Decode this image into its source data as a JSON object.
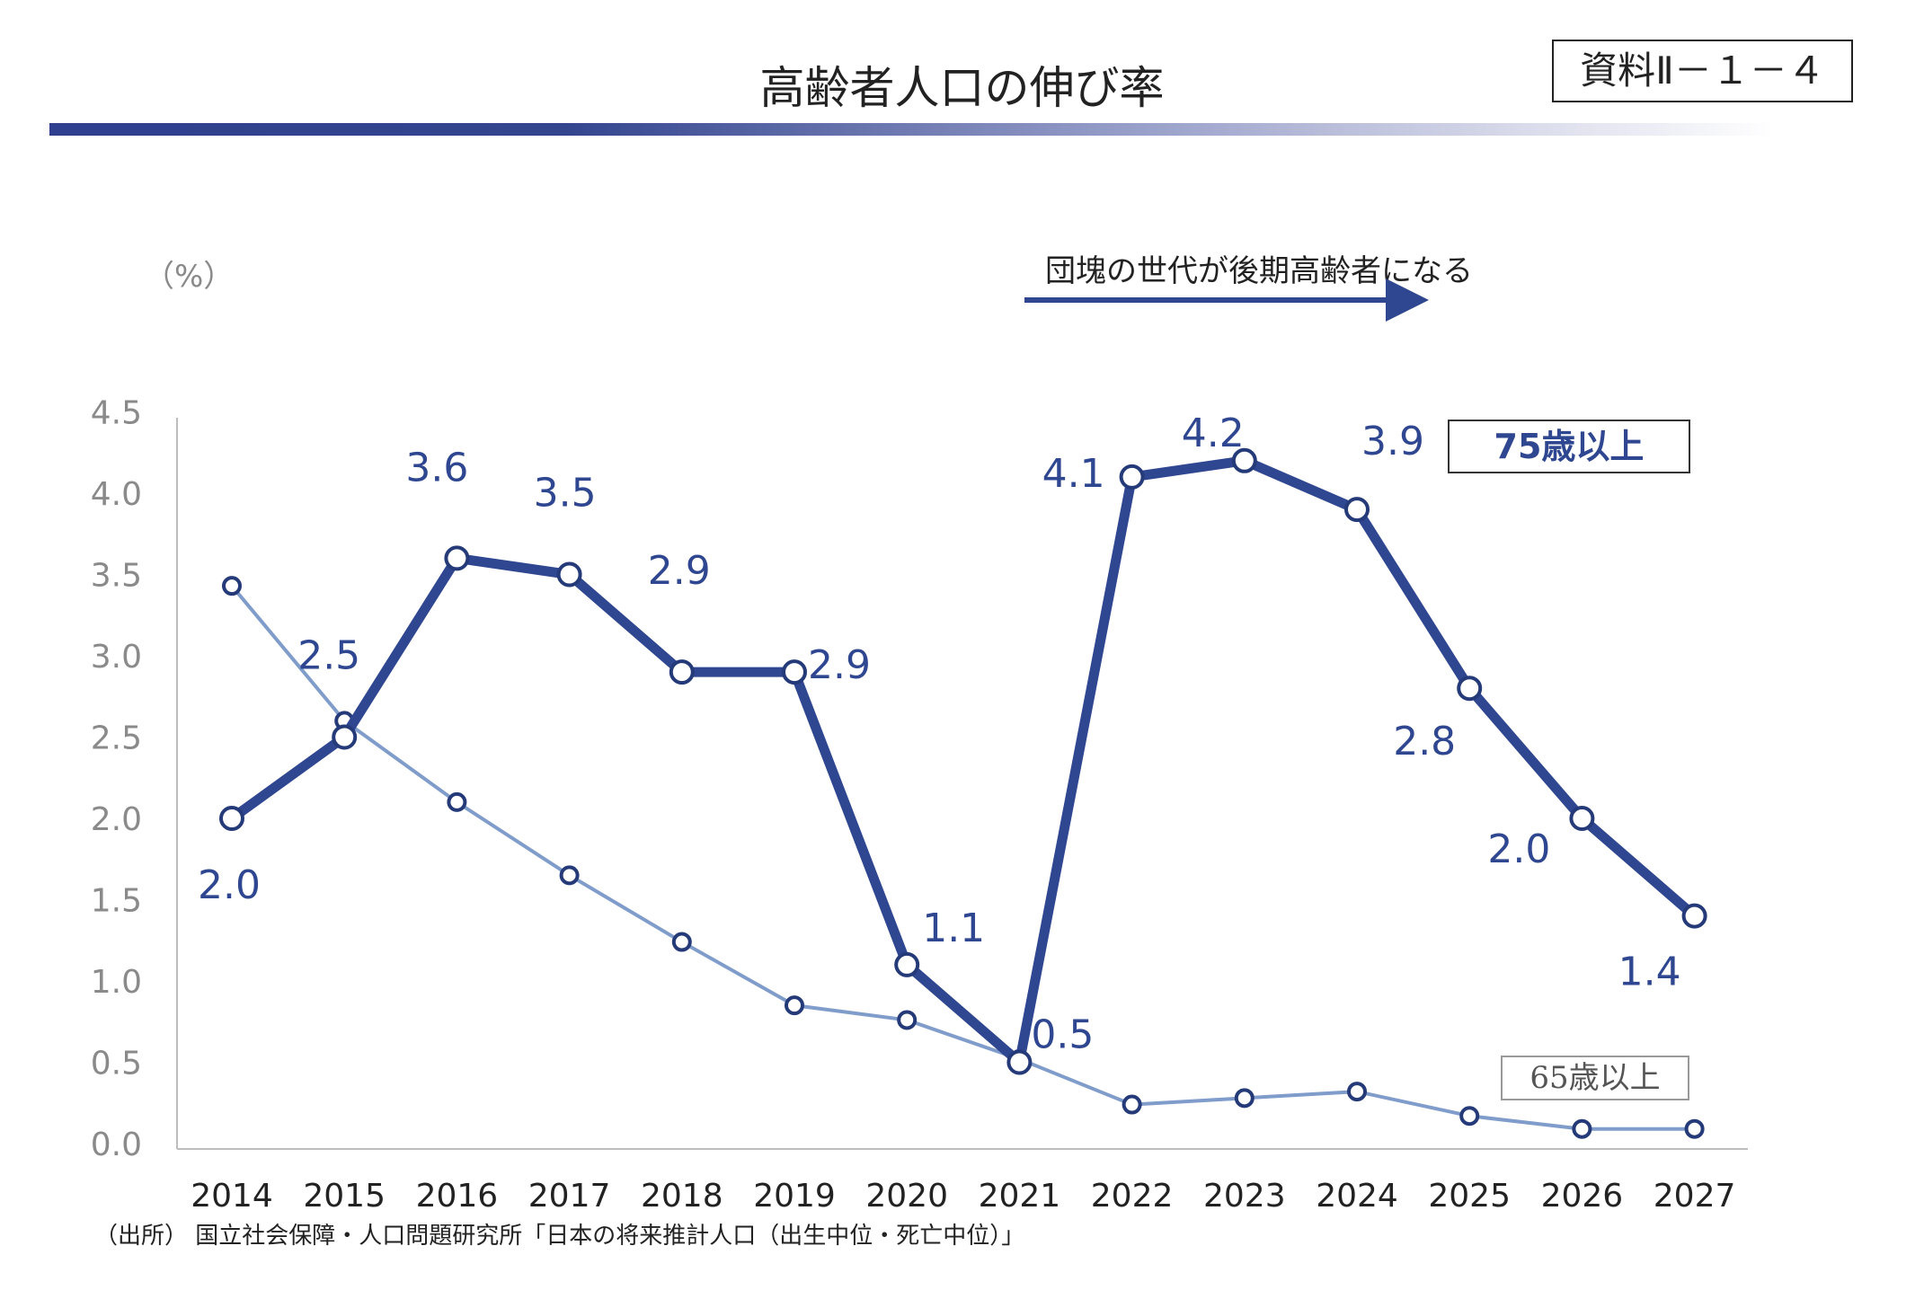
{
  "header": {
    "title": "高齢者人口の伸び率",
    "doc_id": "資料Ⅱ－１－４"
  },
  "colors": {
    "series_75": "#2f4690",
    "series_65": "#7f9ccb",
    "axis_text": "#8a8a8a"
  },
  "chart_data": {
    "type": "line",
    "unit_label": "（%）",
    "annotation": "団塊の世代が後期高齢者になる",
    "source": "（出所） 国立社会保障・人口問題研究所「日本の将来推計人口（出生中位・死亡中位）」",
    "x": [
      "2014",
      "2015",
      "2016",
      "2017",
      "2018",
      "2019",
      "2020",
      "2021",
      "2022",
      "2023",
      "2024",
      "2025",
      "2026",
      "2027"
    ],
    "yticks": [
      "0.0",
      "0.5",
      "1.0",
      "1.5",
      "2.0",
      "2.5",
      "3.0",
      "3.5",
      "4.0",
      "4.5"
    ],
    "ylim": [
      0,
      4.5
    ],
    "grid": false,
    "series": [
      {
        "name": "75歳以上",
        "values": [
          2.0,
          2.5,
          3.6,
          3.5,
          2.9,
          2.9,
          1.1,
          0.5,
          4.1,
          4.2,
          3.9,
          2.8,
          2.0,
          1.4
        ],
        "labels": [
          "2.0",
          "2.5",
          "3.6",
          "3.5",
          "2.9",
          "2.9",
          "1.1",
          "0.5",
          "4.1",
          "4.2",
          "3.9",
          "2.8",
          "2.0",
          "1.4"
        ]
      },
      {
        "name": "65歳以上",
        "values": [
          3.43,
          2.6,
          2.1,
          1.65,
          1.24,
          0.85,
          0.76,
          0.52,
          0.24,
          0.28,
          0.32,
          0.17,
          0.09,
          0.09
        ]
      }
    ]
  }
}
